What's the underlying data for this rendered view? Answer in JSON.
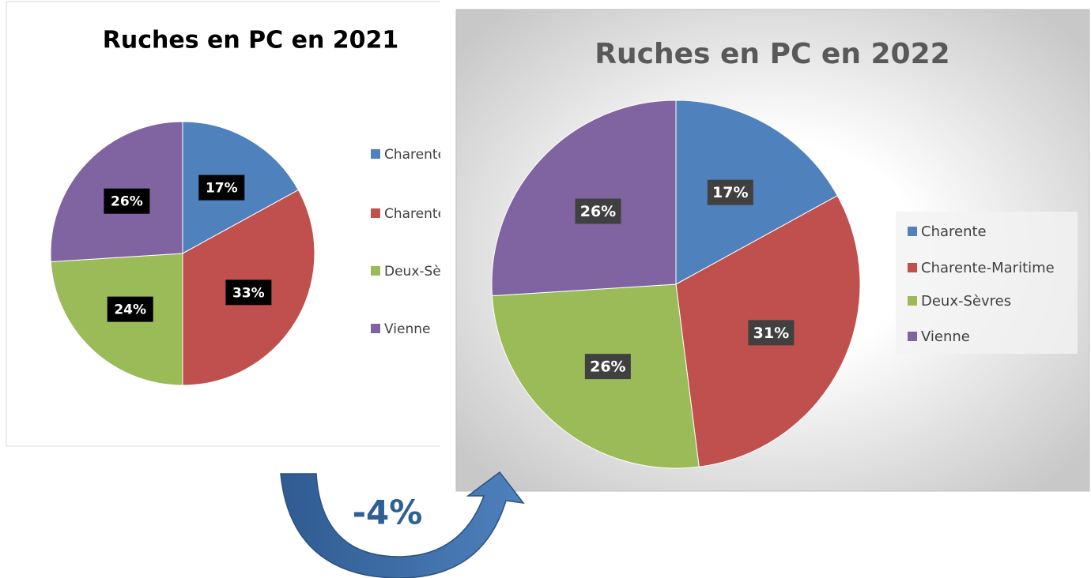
{
  "chart_data": [
    {
      "type": "pie",
      "title": "Ruches en PC en 2021",
      "categories": [
        "Charente",
        "Charente-Maritime",
        "Deux-Sèvres",
        "Vienne"
      ],
      "values": [
        17,
        33,
        24,
        26
      ],
      "value_labels": [
        "17%",
        "33%",
        "24%",
        "26%"
      ],
      "colors": [
        "#4f81bd",
        "#c0504d",
        "#9bbb59",
        "#8064a2"
      ],
      "legend": "right"
    },
    {
      "type": "pie",
      "title": "Ruches en PC en 2022",
      "categories": [
        "Charente",
        "Charente-Maritime",
        "Deux-Sèvres",
        "Vienne"
      ],
      "values": [
        17,
        31,
        26,
        26
      ],
      "value_labels": [
        "17%",
        "31%",
        "26%",
        "26%"
      ],
      "colors": [
        "#4f81bd",
        "#c0504d",
        "#9bbb59",
        "#8064a2"
      ],
      "legend": "right"
    }
  ],
  "annotation": "-4%"
}
